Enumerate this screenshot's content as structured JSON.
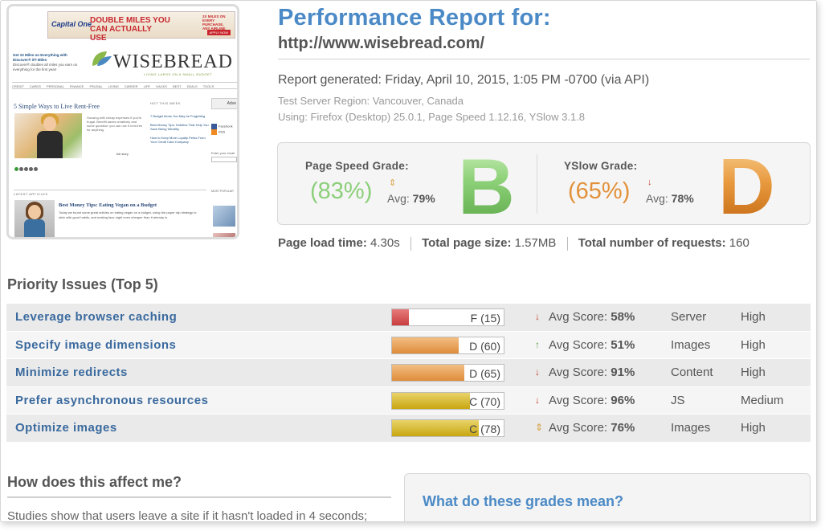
{
  "thumbnail": {
    "ad_logo": "Capital One",
    "ad_headline": "DOUBLE MILES YOU CAN ACTUALLY USE",
    "ad_side": "2X MILES ON EVERY PURCHASE, ANY AIRLINE",
    "ad_apply": "APPLY NOW",
    "left_promo_title": "Get 10 Miles on Everything with Discover® it® Miles",
    "left_promo_body": "Discover® doubles all miles you earn on everything for the first year!",
    "logo": "WISEBREAD",
    "tagline": "LIVING LARGE ON A SMALL BUDGET",
    "nav": "CREDIT CARDS   PERSONAL FINANCE   FRUGAL LIVING   CAREER   LIFE HACKS   BEST DEALS   TOOLS",
    "headline": "5 Simple Ways to Live Rent-Free",
    "teaser": "Housing with cheap expenses if you're frugal. Benefit saves creatively and some question: you can use it rent-free for anything.",
    "full_story": "full story",
    "hot_label": "HOT THIS WEEK",
    "hot_items": [
      "7 Budget Items You May be Forgetting",
      "Best Money Tips: Hobbies That Help You Save Being Wealthy",
      "How to Keep More Loyalty Perks From Your Credit Card Company"
    ],
    "advert": "Adve",
    "social_fb": "Facebook",
    "social_rss": "RSS",
    "email_label": "Enter your email",
    "latest_label": "LATEST ARTICLES",
    "most_popular": "MOST POPULAR",
    "latest_headline": "Best Money Tips: Eating Vegan on a Budget",
    "latest_body": "Today we found some great articles on eating vegan on a budget, using the paper clip strategy to stick with good habits, and making face night even cheaper than it already is."
  },
  "report": {
    "title": "Performance Report for:",
    "url": "http://www.wisebread.com/",
    "generated": "Report generated: Friday, April 10, 2015, 1:05 PM -0700 (via API)",
    "region": "Test Server Region: Vancouver, Canada",
    "using": "Using: Firefox (Desktop) 25.0.1, Page Speed 1.12.16, YSlow 3.1.8"
  },
  "grades": {
    "pagespeed": {
      "label": "Page Speed Grade:",
      "percent": "(83%)",
      "arrow": "⇕",
      "avg_label": "Avg:",
      "avg_value": "79%",
      "letter": "B"
    },
    "yslow": {
      "label": "YSlow Grade:",
      "percent": "(65%)",
      "arrow": "↓",
      "avg_label": "Avg:",
      "avg_value": "78%",
      "letter": "D"
    }
  },
  "stats": {
    "load_time_label": "Page load time:",
    "load_time": "4.30s",
    "size_label": "Total page size:",
    "size": "1.57MB",
    "requests_label": "Total number of requests:",
    "requests": "160"
  },
  "priority": {
    "title": "Priority Issues (Top 5)",
    "avg_label": "Avg Score:",
    "issues": [
      {
        "name": "Leverage browser caching",
        "grade": "F (15)",
        "score": 15,
        "color": "#d45050",
        "arrow": "↓",
        "trend": "down",
        "avg": "58%",
        "type": "Server",
        "priority": "High"
      },
      {
        "name": "Specify image dimensions",
        "grade": "D (60)",
        "score": 60,
        "color": "#e59a4a",
        "arrow": "↑",
        "trend": "up",
        "avg": "51%",
        "type": "Images",
        "priority": "High"
      },
      {
        "name": "Minimize redirects",
        "grade": "D (65)",
        "score": 65,
        "color": "#e59a4a",
        "arrow": "↓",
        "trend": "down",
        "avg": "91%",
        "type": "Content",
        "priority": "High"
      },
      {
        "name": "Prefer asynchronous resources",
        "grade": "C (70)",
        "score": 70,
        "color": "#d4b42a",
        "arrow": "↓",
        "trend": "down",
        "avg": "96%",
        "type": "JS",
        "priority": "Medium"
      },
      {
        "name": "Optimize images",
        "grade": "C (78)",
        "score": 78,
        "color": "#d4b42a",
        "arrow": "⇕",
        "trend": "both",
        "avg": "76%",
        "type": "Images",
        "priority": "High"
      }
    ]
  },
  "affect": {
    "title": "How does this affect me?",
    "text": "Studies show that users leave a site if it hasn't loaded in 4 seconds;"
  },
  "grades_info": {
    "title": "What do these grades mean?"
  }
}
